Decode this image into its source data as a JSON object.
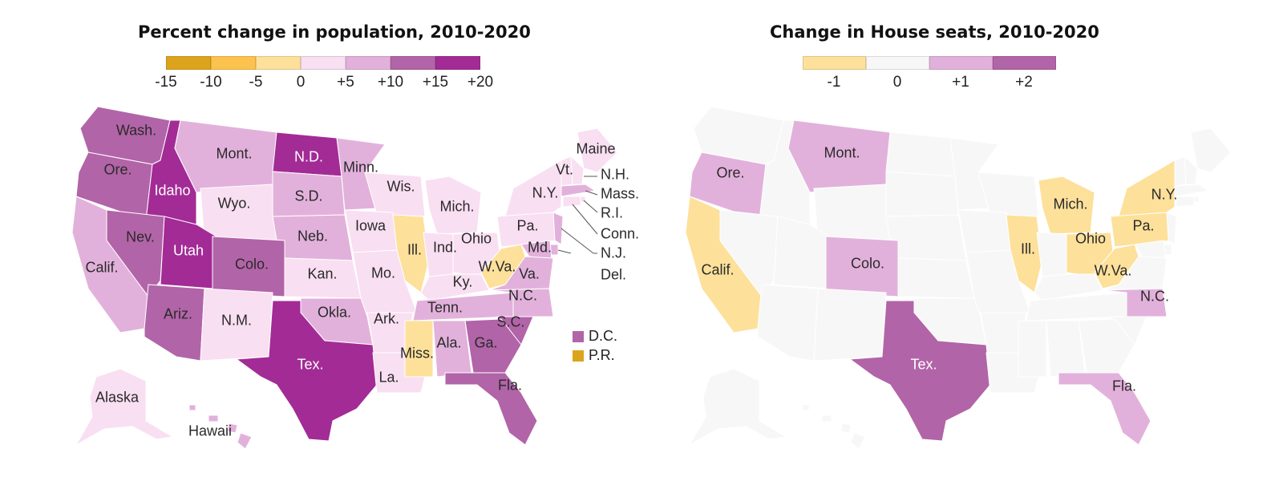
{
  "population_map": {
    "title": "Percent change in population, 2010-2020",
    "scale": {
      "colors": [
        "#dca41c",
        "#fcc24e",
        "#fde09a",
        "#f9dff2",
        "#e2b1db",
        "#b264a8",
        "#a32b96"
      ],
      "ticks": [
        "-15",
        "-10",
        "-5",
        "0",
        "+5",
        "+10",
        "+15",
        "+20"
      ]
    },
    "states": [
      {
        "name": "Wash.",
        "color": "#b264a8"
      },
      {
        "name": "Ore.",
        "color": "#b264a8"
      },
      {
        "name": "Idaho",
        "color": "#a32b96"
      },
      {
        "name": "Mont.",
        "color": "#e2b1db"
      },
      {
        "name": "N.D.",
        "color": "#a32b96"
      },
      {
        "name": "Minn.",
        "color": "#e2b1db"
      },
      {
        "name": "Wis.",
        "color": "#f9dff2"
      },
      {
        "name": "Mich.",
        "color": "#f9dff2"
      },
      {
        "name": "Maine",
        "color": "#f9dff2"
      },
      {
        "name": "Vt.",
        "color": "#f9dff2"
      },
      {
        "name": "N.H.",
        "color": "#f9dff2"
      },
      {
        "name": "Mass.",
        "color": "#e2b1db"
      },
      {
        "name": "R.I.",
        "color": "#f9dff2"
      },
      {
        "name": "Conn.",
        "color": "#f9dff2"
      },
      {
        "name": "N.J.",
        "color": "#e2b1db"
      },
      {
        "name": "Del.",
        "color": "#e2b1db"
      },
      {
        "name": "Md.",
        "color": "#e2b1db"
      },
      {
        "name": "N.Y.",
        "color": "#f9dff2"
      },
      {
        "name": "Pa.",
        "color": "#f9dff2"
      },
      {
        "name": "Wyo.",
        "color": "#f9dff2"
      },
      {
        "name": "S.D.",
        "color": "#e2b1db"
      },
      {
        "name": "Iowa",
        "color": "#f9dff2"
      },
      {
        "name": "Neb.",
        "color": "#e2b1db"
      },
      {
        "name": "Ill.",
        "color": "#fde09a"
      },
      {
        "name": "Ind.",
        "color": "#f9dff2"
      },
      {
        "name": "Ohio",
        "color": "#f9dff2"
      },
      {
        "name": "W.Va.",
        "color": "#fde09a"
      },
      {
        "name": "Va.",
        "color": "#e2b1db"
      },
      {
        "name": "Nev.",
        "color": "#b264a8"
      },
      {
        "name": "Utah",
        "color": "#a32b96"
      },
      {
        "name": "Colo.",
        "color": "#b264a8"
      },
      {
        "name": "Calif.",
        "color": "#e2b1db"
      },
      {
        "name": "Kan.",
        "color": "#f9dff2"
      },
      {
        "name": "Mo.",
        "color": "#f9dff2"
      },
      {
        "name": "Ky.",
        "color": "#f9dff2"
      },
      {
        "name": "Tenn.",
        "color": "#e2b1db"
      },
      {
        "name": "N.C.",
        "color": "#e2b1db"
      },
      {
        "name": "S.C.",
        "color": "#b264a8"
      },
      {
        "name": "Okla.",
        "color": "#e2b1db"
      },
      {
        "name": "Ark.",
        "color": "#f9dff2"
      },
      {
        "name": "Ariz.",
        "color": "#b264a8"
      },
      {
        "name": "N.M.",
        "color": "#f9dff2"
      },
      {
        "name": "Tex.",
        "color": "#a32b96"
      },
      {
        "name": "Miss.",
        "color": "#fde09a"
      },
      {
        "name": "Ala.",
        "color": "#e2b1db"
      },
      {
        "name": "Ga.",
        "color": "#b264a8"
      },
      {
        "name": "La.",
        "color": "#f9dff2"
      },
      {
        "name": "Fla.",
        "color": "#b264a8"
      },
      {
        "name": "Alaska",
        "color": "#f9dff2"
      },
      {
        "name": "Hawaii",
        "color": "#e2b1db"
      }
    ],
    "territories": [
      {
        "name": "D.C.",
        "color": "#b264a8"
      },
      {
        "name": "P.R.",
        "color": "#dca41c"
      }
    ]
  },
  "seats_map": {
    "title": "Change in House seats, 2010-2020",
    "scale": {
      "colors": [
        "#fde09a",
        "#f7f7f7",
        "#e2b1db",
        "#b264a8"
      ],
      "ticks": [
        "-1",
        "0",
        "+1",
        "+2"
      ]
    },
    "neutral_color": "#f7f7f7",
    "changed_states": [
      {
        "name": "Mont.",
        "change": 1,
        "color": "#e2b1db"
      },
      {
        "name": "Ore.",
        "change": 1,
        "color": "#e2b1db"
      },
      {
        "name": "Calif.",
        "change": -1,
        "color": "#fde09a"
      },
      {
        "name": "Colo.",
        "change": 1,
        "color": "#e2b1db"
      },
      {
        "name": "Tex.",
        "change": 2,
        "color": "#b264a8"
      },
      {
        "name": "Mich.",
        "change": -1,
        "color": "#fde09a"
      },
      {
        "name": "Ill.",
        "change": -1,
        "color": "#fde09a"
      },
      {
        "name": "Ohio",
        "change": -1,
        "color": "#fde09a"
      },
      {
        "name": "Pa.",
        "change": -1,
        "color": "#fde09a"
      },
      {
        "name": "N.Y.",
        "change": -1,
        "color": "#fde09a"
      },
      {
        "name": "W.Va.",
        "change": -1,
        "color": "#fde09a"
      },
      {
        "name": "N.C.",
        "change": 1,
        "color": "#e2b1db"
      },
      {
        "name": "Fla.",
        "change": 1,
        "color": "#e2b1db"
      }
    ]
  }
}
